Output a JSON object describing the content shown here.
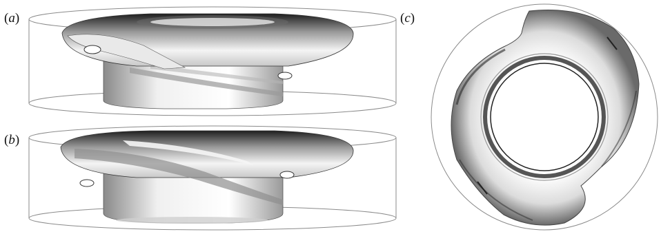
{
  "figure": {
    "panels": [
      {
        "id": "a",
        "label_open": "(",
        "letter": "a",
        "label_close": ")",
        "view": "side"
      },
      {
        "id": "b",
        "label_open": "(",
        "letter": "b",
        "label_close": ")",
        "view": "side"
      },
      {
        "id": "c",
        "label_open": "(",
        "letter": "c",
        "label_close": ")",
        "view": "top"
      }
    ],
    "colors": {
      "frame": "#8a8a8a",
      "surface_light": "#fafafa",
      "surface_mid": "#cfcfcf",
      "surface_dark": "#2a2a2a"
    }
  }
}
